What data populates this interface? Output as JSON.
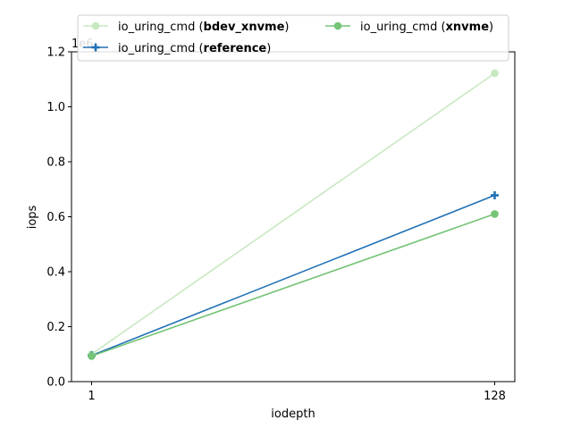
{
  "chart_data": {
    "type": "line",
    "xlabel": "iodepth",
    "ylabel": "iops",
    "offset_text": "1e6",
    "x": [
      1,
      128
    ],
    "x_tick_labels": [
      "1",
      "128"
    ],
    "ylim": [
      0.0,
      1.2
    ],
    "y_ticks": [
      0.0,
      0.2,
      0.4,
      0.6,
      0.8,
      1.0,
      1.2
    ],
    "y_tick_labels": [
      "0.0",
      "0.2",
      "0.4",
      "0.6",
      "0.8",
      "1.0",
      "1.2"
    ],
    "grid": false,
    "legend_placement": "top",
    "series": [
      {
        "name_prefix": "io_uring_cmd (",
        "name_bold": "bdev_xnvme",
        "name_suffix": ")",
        "values": [
          0.1,
          1.122
        ],
        "color": "#c7e9c0",
        "marker": "circle"
      },
      {
        "name_prefix": "io_uring_cmd (",
        "name_bold": "reference",
        "name_suffix": ")",
        "values": [
          0.095,
          0.678
        ],
        "color": "#2171b5",
        "marker": "plus"
      },
      {
        "name_prefix": "io_uring_cmd (",
        "name_bold": "xnvme",
        "name_suffix": ")",
        "values": [
          0.093,
          0.61
        ],
        "color": "#74c476",
        "marker": "circle"
      }
    ]
  }
}
